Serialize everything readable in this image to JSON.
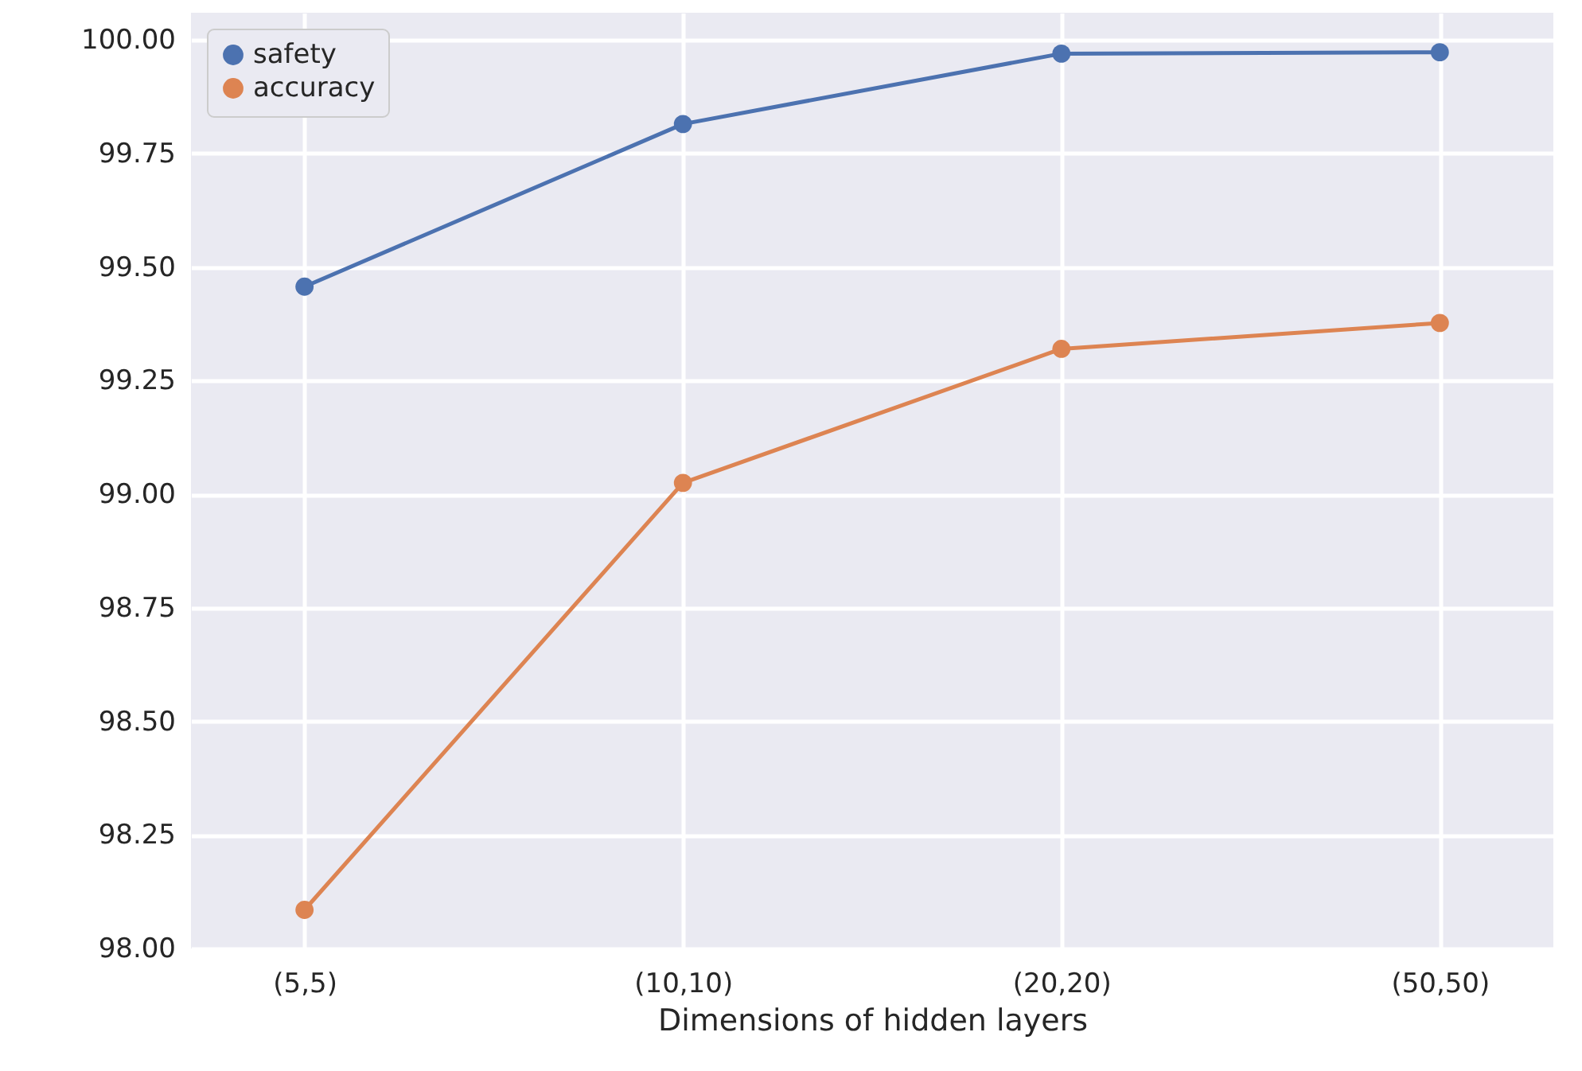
{
  "chart_data": {
    "type": "line",
    "xlabel": "Dimensions of hidden layers",
    "categories": [
      "(5,5)",
      "(10,10)",
      "(20,20)",
      "(50,50)"
    ],
    "series": [
      {
        "name": "safety",
        "color": "#4c72b0",
        "values": [
          99.457,
          99.815,
          99.97,
          99.973
        ]
      },
      {
        "name": "accuracy",
        "color": "#dd8452",
        "values": [
          98.085,
          99.025,
          99.32,
          99.377
        ]
      }
    ],
    "ylim": [
      98.0,
      100.06
    ],
    "yticks": [
      {
        "value": 98,
        "label": "98.00"
      },
      {
        "value": 98.25,
        "label": "98.25"
      },
      {
        "value": 98.5,
        "label": "98.50"
      },
      {
        "value": 98.75,
        "label": "98.75"
      },
      {
        "value": 99,
        "label": "99.00"
      },
      {
        "value": 99.25,
        "label": "99.25"
      },
      {
        "value": 99.5,
        "label": "99.50"
      },
      {
        "value": 99.75,
        "label": "99.75"
      },
      {
        "value": 100,
        "label": "100.00"
      }
    ],
    "grid": true,
    "legend": "top left",
    "marker": "circle",
    "line_style": "solid"
  }
}
